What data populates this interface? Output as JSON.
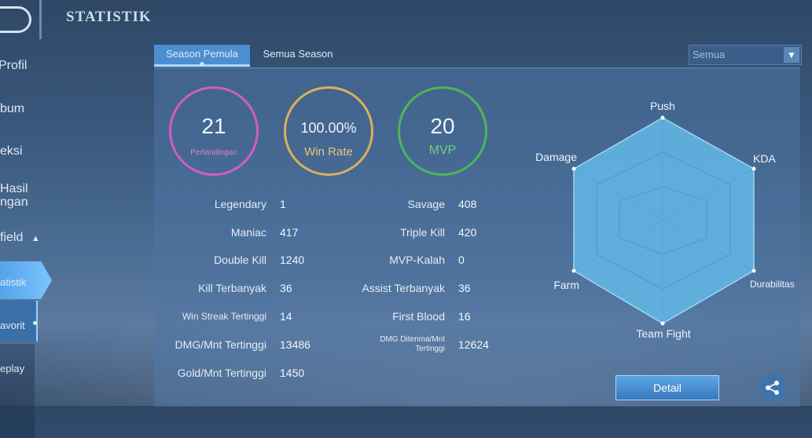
{
  "header": {
    "title": "STATISTIK"
  },
  "sidebar": {
    "items": [
      {
        "label": "Profil"
      },
      {
        "label": "bum"
      },
      {
        "label": "eksi"
      },
      {
        "label": "Hasil"
      },
      {
        "label": "ngan"
      },
      {
        "label": "field"
      },
      {
        "label": "atistik"
      },
      {
        "label": "avorit"
      },
      {
        "label": "eplay"
      }
    ]
  },
  "tabs": [
    {
      "label": "Season Pemula",
      "active": true
    },
    {
      "label": "Semua Season",
      "active": false
    }
  ],
  "filter": {
    "selected": "Semua"
  },
  "summary": {
    "matches": {
      "value": "21",
      "label": "Pertandingan",
      "color": "#d25cc2"
    },
    "win_rate": {
      "value": "100.00%",
      "label": "Win Rate",
      "color": "#d9b15b"
    },
    "mvp": {
      "value": "20",
      "label": "MVP",
      "color": "#4fb559"
    }
  },
  "stats_left": [
    {
      "label": "Legendary",
      "value": "1"
    },
    {
      "label": "Maniac",
      "value": "417"
    },
    {
      "label": "Double Kill",
      "value": "1240"
    },
    {
      "label": "Kill Terbanyak",
      "value": "36"
    },
    {
      "label": "Win Streak Tertinggi",
      "value": "14"
    },
    {
      "label": "DMG/Mnt Tertinggi",
      "value": "13486"
    },
    {
      "label": "Gold/Mnt Tertinggi",
      "value": "1450"
    }
  ],
  "stats_right": [
    {
      "label": "Savage",
      "value": "408"
    },
    {
      "label": "Triple Kill",
      "value": "420"
    },
    {
      "label": "MVP-Kalah",
      "value": "0"
    },
    {
      "label": "Assist Terbanyak",
      "value": "36"
    },
    {
      "label": "First Blood",
      "value": "16"
    },
    {
      "label": "DMG Diterima/Mnt Tertinggi",
      "value": "12624"
    }
  ],
  "radar": {
    "axes": [
      "Push",
      "KDA",
      "Durabilitas",
      "Team Fight",
      "Farm",
      "Damage"
    ],
    "fill_color": "#63b8e6"
  },
  "actions": {
    "detail_label": "Detail"
  },
  "icons": {
    "share": "share-icon",
    "dropdown": "chevron-down-icon",
    "back": "back-icon"
  }
}
